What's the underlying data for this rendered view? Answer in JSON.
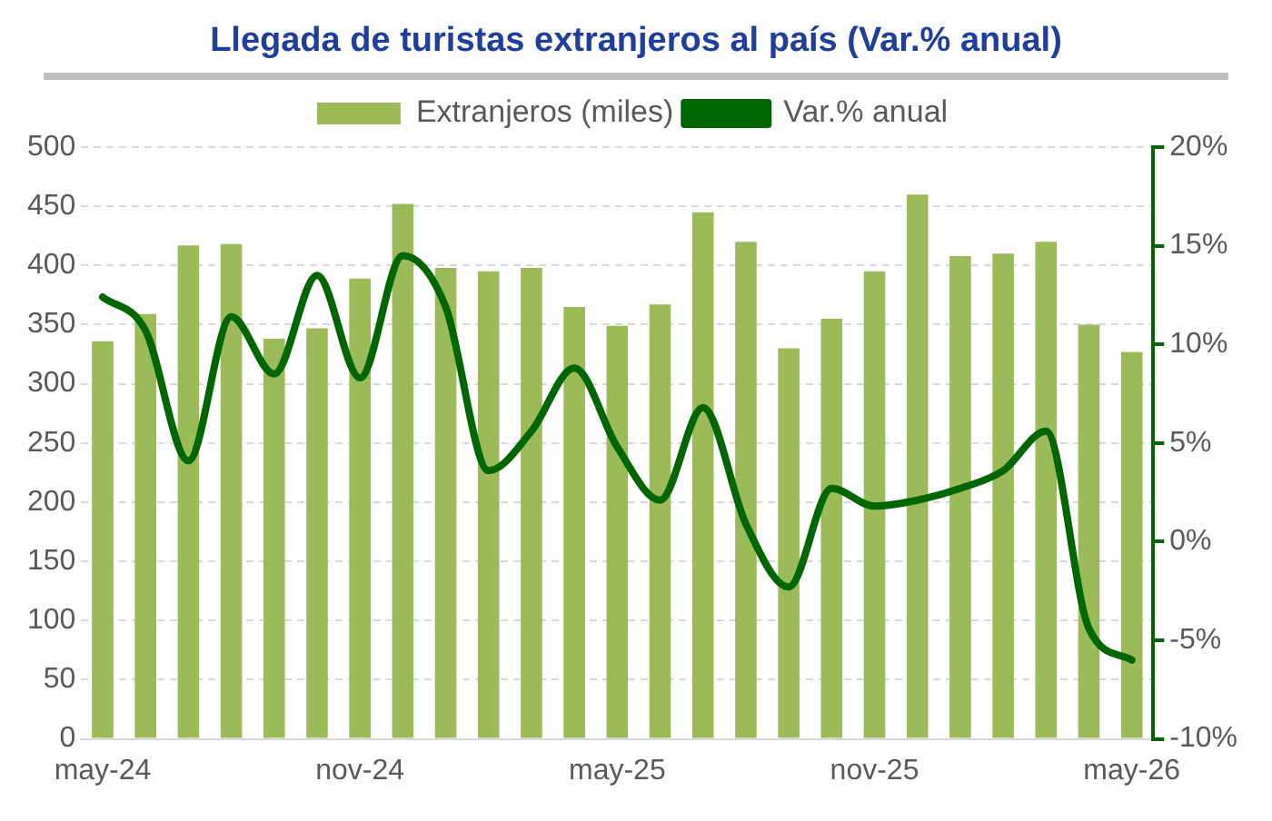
{
  "chart_data": {
    "type": "bar",
    "title": "Llegada de turistas extranjeros al país (Var.% anual)",
    "categories": [
      "may-24",
      null,
      null,
      null,
      null,
      null,
      "nov-24",
      null,
      null,
      null,
      null,
      null,
      "may-25",
      null,
      null,
      null,
      null,
      null,
      "nov-25",
      null,
      null,
      null,
      null,
      null,
      "may-26"
    ],
    "series": [
      {
        "name": "Extranjeros (miles)",
        "color": "#9bbb59",
        "values": [
          336,
          359,
          417,
          418,
          338,
          347,
          389,
          452,
          398,
          395,
          398,
          365,
          349,
          367,
          445,
          420,
          330,
          355,
          395,
          460,
          408,
          410,
          420,
          350,
          327
        ]
      },
      {
        "name": "Var.% anual",
        "type": "line",
        "axis": "y2",
        "color": "#006600",
        "values": [
          12.4,
          10.7,
          4.1,
          11.4,
          8.5,
          13.5,
          8.3,
          14.5,
          11.9,
          3.6,
          5.6,
          8.8,
          4.8,
          2.1,
          6.8,
          0.9,
          -2.3,
          2.7,
          1.8,
          2.1,
          2.7,
          3.6,
          5.6,
          -4.4,
          -6.0
        ]
      }
    ],
    "ylim": [
      0,
      500
    ],
    "yticks": [
      0,
      50,
      100,
      150,
      200,
      250,
      300,
      350,
      400,
      450,
      500
    ],
    "y2lim": [
      -10,
      20
    ],
    "y2ticks": [
      {
        "value": -10,
        "label": "-10%"
      },
      {
        "value": -5,
        "label": "-5%"
      },
      {
        "value": 0,
        "label": "0%"
      },
      {
        "value": 5,
        "label": "5%"
      },
      {
        "value": 10,
        "label": "10%"
      },
      {
        "value": 15,
        "label": "15%"
      },
      {
        "value": 20,
        "label": "20%"
      }
    ],
    "grid": "y",
    "legend": "top",
    "marker": "none",
    "line_style": "solid"
  }
}
